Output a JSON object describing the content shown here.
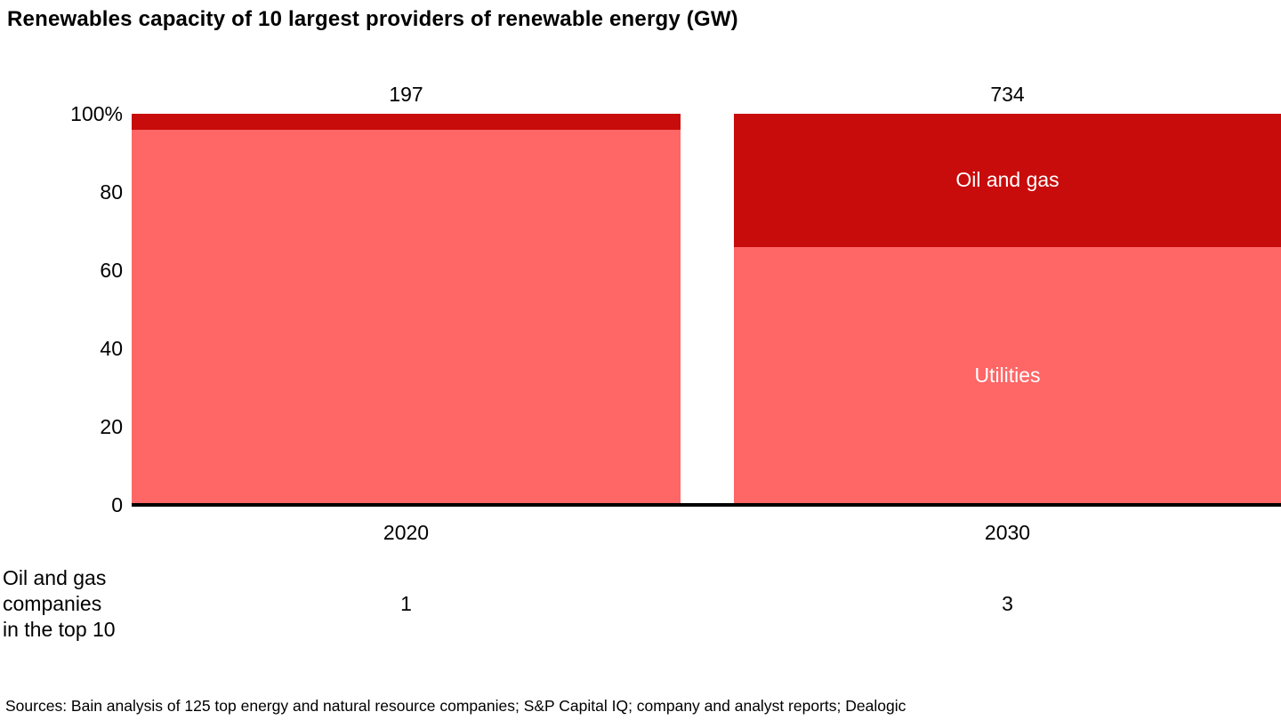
{
  "title": "Renewables capacity of 10 largest providers of renewable energy (GW)",
  "chart_data": {
    "type": "bar",
    "subtype": "stacked-100-percent",
    "categories": [
      "2020",
      "2030"
    ],
    "totals_gw": [
      197,
      734
    ],
    "series": [
      {
        "name": "Oil and gas",
        "values": [
          4,
          34
        ],
        "color": "#c80b0b"
      },
      {
        "name": "Utilities",
        "values": [
          96,
          66
        ],
        "color": "#ff6666"
      }
    ],
    "ylim": [
      0,
      100
    ],
    "yticks": [
      "100%",
      "80",
      "60",
      "40",
      "20",
      "0"
    ],
    "grid": "off",
    "legend": "inline-segment-labels",
    "annotation_row": {
      "label": "Oil and gas\ncompanies\nin the top 10",
      "values": [
        "1",
        "3"
      ]
    }
  },
  "footer": {
    "sources": "Sources: Bain analysis of 125 top energy and natural resource companies; S&P Capital IQ; company and analyst reports; Dealogic"
  },
  "colors": {
    "oil_and_gas": "#c80b0b",
    "utilities": "#ff6666",
    "axis": "#000000",
    "background": "#ffffff"
  }
}
